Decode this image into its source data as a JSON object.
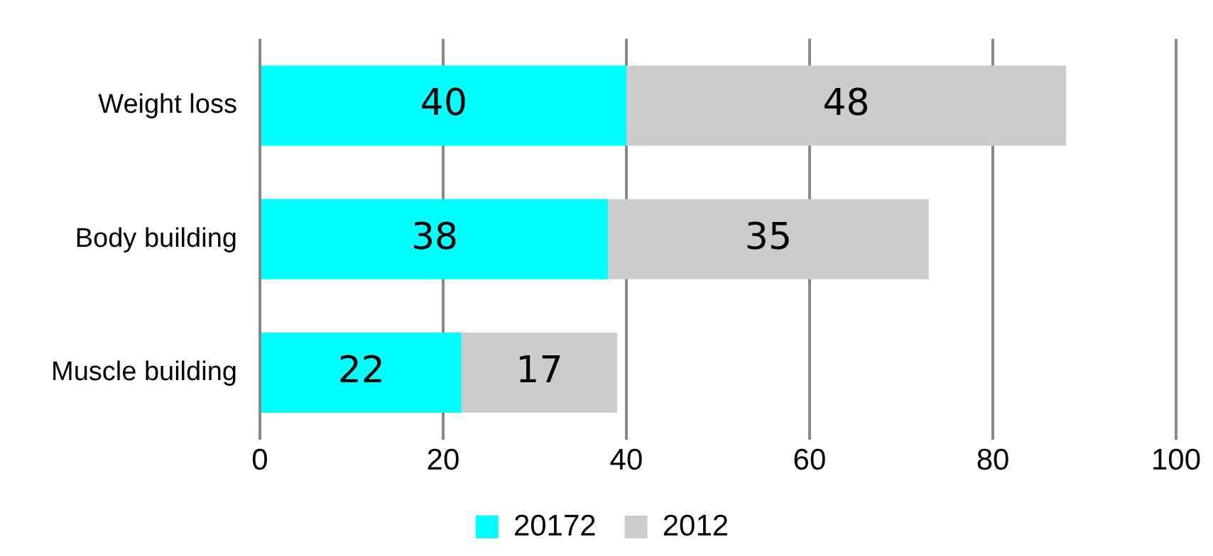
{
  "chart_data": {
    "type": "bar",
    "orientation": "horizontal",
    "stacked": true,
    "categories": [
      "Weight loss",
      "Body building",
      "Muscle building"
    ],
    "series": [
      {
        "name": "20172",
        "color": "#00ffff",
        "values": [
          40,
          38,
          22
        ]
      },
      {
        "name": "2012",
        "color": "#cccccc",
        "values": [
          48,
          35,
          17
        ]
      }
    ],
    "xlim": [
      0,
      100
    ],
    "xticks": [
      0,
      20,
      40,
      60,
      80,
      100
    ],
    "grid": "x",
    "legend": "bottom",
    "data_labels": true
  }
}
